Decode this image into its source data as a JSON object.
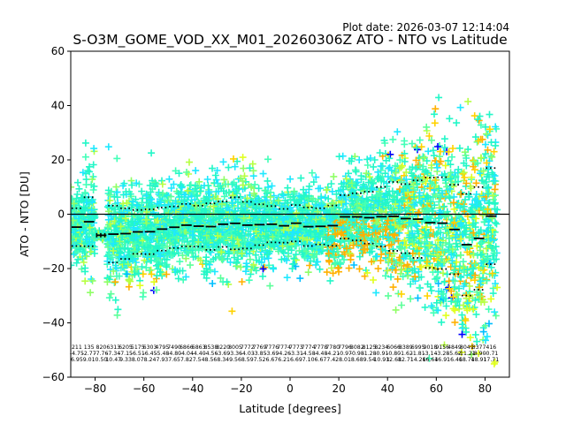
{
  "plot_date": "Plot date: 2026-03-07 12:14:04",
  "chart_data": {
    "type": "scatter",
    "title": "S-O3M_GOME_VOD_XX_M01_20260306Z ATO - NTO vs Latitude",
    "xlabel": "Latitude [degrees]",
    "ylabel": "ATO - NTO [DU]",
    "xlim": [
      -90,
      90
    ],
    "ylim": [
      -60,
      60
    ],
    "xticks": [
      -80,
      -60,
      -40,
      -20,
      0,
      20,
      40,
      60,
      80
    ],
    "yticks": [
      -60,
      -40,
      -20,
      0,
      20,
      40,
      60
    ],
    "grid": false,
    "legend": "none",
    "point_marker": "+",
    "point_colors": [
      "#0000ff",
      "#00bfff",
      "#1fe8ff",
      "#23f7c8",
      "#43ffb8",
      "#5cff9a",
      "#8fff66",
      "#b7ff44",
      "#e0ff1e",
      "#ffd200",
      "#ffb000"
    ],
    "zero_line": 0,
    "bins": [
      {
        "lat": -87.5,
        "mean": -4.75,
        "std": 6.95,
        "count": "211"
      },
      {
        "lat": -82.5,
        "mean": -2.77,
        "std": 9.01,
        "count": "135"
      },
      {
        "lat": -77.5,
        "mean": -7.76,
        "std": 0.5,
        "count": "820"
      },
      {
        "lat": -72.5,
        "mean": -7.34,
        "std": 10.47,
        "count": "6313"
      },
      {
        "lat": -67.5,
        "mean": -7.15,
        "std": 9.33,
        "count": "6205"
      },
      {
        "lat": -62.5,
        "mean": -6.51,
        "std": 8.07,
        "count": "5175"
      },
      {
        "lat": -57.5,
        "mean": -6.45,
        "std": 8.24,
        "count": "6303"
      },
      {
        "lat": -52.5,
        "mean": -5.48,
        "std": 7.93,
        "count": "4795"
      },
      {
        "lat": -47.5,
        "mean": -4.8,
        "std": 7.65,
        "count": "7490"
      },
      {
        "lat": -42.5,
        "mean": -4.04,
        "std": 7.82,
        "count": "6866"
      },
      {
        "lat": -37.5,
        "mean": -4.4,
        "std": 7.54,
        "count": "6863"
      },
      {
        "lat": -32.5,
        "mean": -4.56,
        "std": 8.56,
        "count": "8538"
      },
      {
        "lat": -27.5,
        "mean": -3.69,
        "std": 8.34,
        "count": "8220"
      },
      {
        "lat": -22.5,
        "mean": -3.36,
        "std": 9.56,
        "count": "8005"
      },
      {
        "lat": -17.5,
        "mean": -4.03,
        "std": 8.59,
        "count": "7772"
      },
      {
        "lat": -12.5,
        "mean": -3.85,
        "std": 7.52,
        "count": "7769"
      },
      {
        "lat": -7.5,
        "mean": -3.69,
        "std": 6.67,
        "count": "7776"
      },
      {
        "lat": -2.5,
        "mean": -4.26,
        "std": 6.21,
        "count": "7774"
      },
      {
        "lat": 2.5,
        "mean": -3.31,
        "std": 6.69,
        "count": "7773"
      },
      {
        "lat": 7.5,
        "mean": -4.58,
        "std": 7.1,
        "count": "7774"
      },
      {
        "lat": 12.5,
        "mean": -4.48,
        "std": 6.67,
        "count": "7778"
      },
      {
        "lat": 17.5,
        "mean": -4.21,
        "std": 7.42,
        "count": "7780"
      },
      {
        "lat": 22.5,
        "mean": -0.97,
        "std": 8.01,
        "count": "7796"
      },
      {
        "lat": 27.5,
        "mean": -0.98,
        "std": 8.68,
        "count": "8082"
      },
      {
        "lat": 32.5,
        "mean": -1.28,
        "std": 9.54,
        "count": "8125"
      },
      {
        "lat": 37.5,
        "mean": -0.91,
        "std": 10.93,
        "count": "8234"
      },
      {
        "lat": 42.5,
        "mean": -0.8,
        "std": 12.68,
        "count": "6066"
      },
      {
        "lat": 47.5,
        "mean": -1.62,
        "std": 12.71,
        "count": "8389"
      },
      {
        "lat": 52.5,
        "mean": -1.81,
        "std": 14.26,
        "count": "6995"
      },
      {
        "lat": 57.5,
        "mean": -3.14,
        "std": 16.64,
        "count": "9018"
      },
      {
        "lat": 62.5,
        "mean": -3.28,
        "std": 16.91,
        "count": "9156"
      },
      {
        "lat": 67.5,
        "mean": -5.62,
        "std": 16.46,
        "count": "4849"
      },
      {
        "lat": 72.5,
        "mean": -11.21,
        "std": 18.74,
        "count": "8049"
      },
      {
        "lat": 77.5,
        "mean": -8.9,
        "std": 18.91,
        "count": "3377"
      },
      {
        "lat": 82.5,
        "mean": -0.71,
        "std": 17.71,
        "count": "416"
      }
    ]
  }
}
